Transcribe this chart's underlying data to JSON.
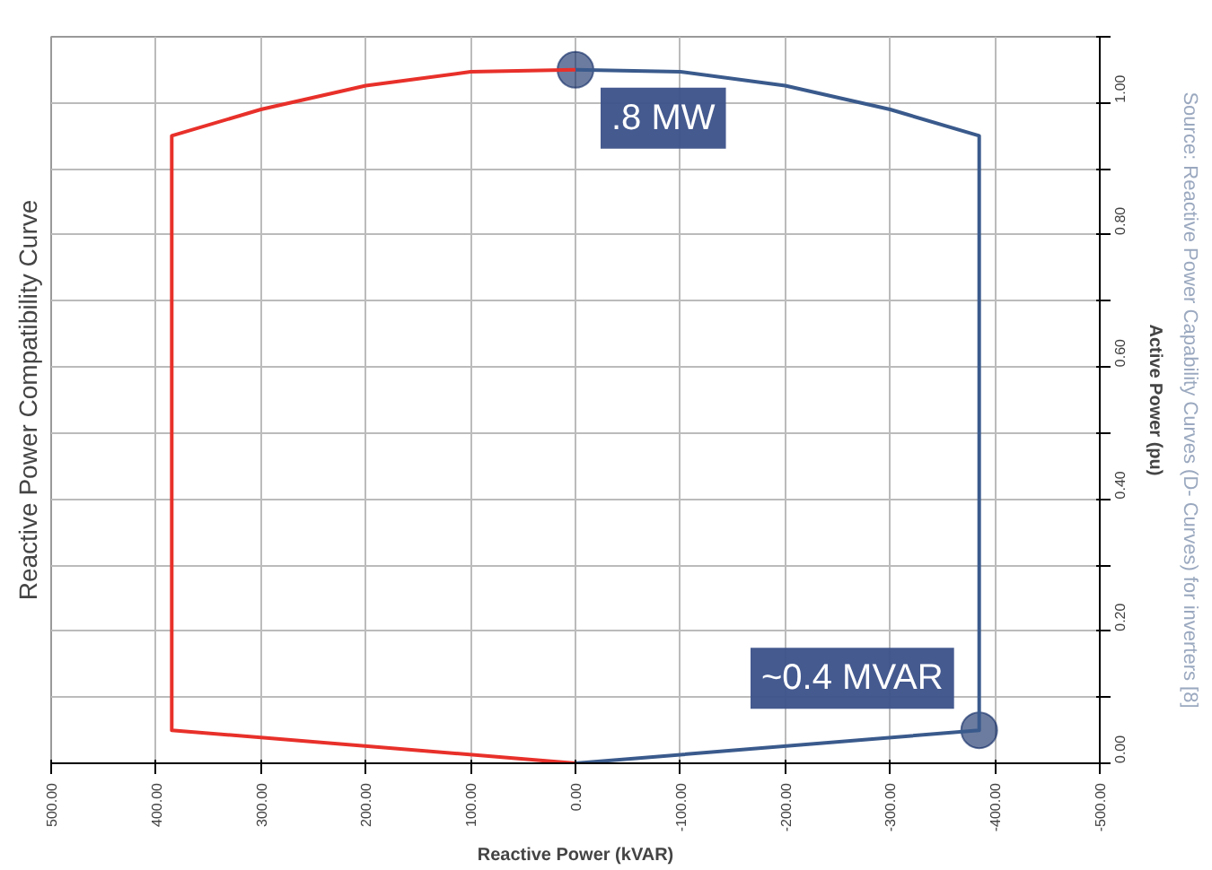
{
  "chart_data": {
    "type": "line",
    "title": "Reactive Power Compatibility Curve",
    "xlabel": "Reactive Power (kVAR)",
    "ylabel": "Active Power (pu)",
    "xlim": [
      500,
      -500
    ],
    "ylim": [
      0,
      1.1
    ],
    "xticks": [
      {
        "value": 500,
        "label": "500.00"
      },
      {
        "value": 400,
        "label": "400.00"
      },
      {
        "value": 300,
        "label": "300.00"
      },
      {
        "value": 200,
        "label": "200.00"
      },
      {
        "value": 100,
        "label": "100.00"
      },
      {
        "value": 0,
        "label": "0.00"
      },
      {
        "value": -100,
        "label": "-100.00"
      },
      {
        "value": -200,
        "label": "-200.00"
      },
      {
        "value": -300,
        "label": "-300.00"
      },
      {
        "value": -400,
        "label": "-400.00"
      },
      {
        "value": -500,
        "label": "-500.00"
      }
    ],
    "yticks": [
      {
        "value": 0,
        "label": "0.00"
      },
      {
        "value": 0.1,
        "label": null
      },
      {
        "value": 0.2,
        "label": "0.20"
      },
      {
        "value": 0.3,
        "label": null
      },
      {
        "value": 0.4,
        "label": "0.40"
      },
      {
        "value": 0.5,
        "label": null
      },
      {
        "value": 0.6,
        "label": "0.60"
      },
      {
        "value": 0.7,
        "label": null
      },
      {
        "value": 0.8,
        "label": "0.80"
      },
      {
        "value": 0.9,
        "label": null
      },
      {
        "value": 1.0,
        "label": "1.00"
      },
      {
        "value": 1.1,
        "label": null
      }
    ],
    "grid": true,
    "series": [
      {
        "color": "#e8302a",
        "x": [
          0,
          100,
          200,
          300,
          385,
          385,
          0
        ],
        "values": [
          1.05,
          1.047,
          1.026,
          0.99,
          0.95,
          0.05,
          0
        ]
      },
      {
        "color": "#3a5a8c",
        "x": [
          0,
          -100,
          -200,
          -300,
          -385,
          -385,
          0
        ],
        "values": [
          1.05,
          1.047,
          1.026,
          0.99,
          0.95,
          0.05,
          0
        ]
      }
    ],
    "annotations": [
      {
        "text": ".8 MW",
        "x": 0,
        "y": 1.05
      },
      {
        "text": "~0.4 MVAR",
        "x": -385,
        "y": 0.05
      },
      "Source: Reactive Power Capability Curves (D- Curves) for inverters [8]"
    ]
  }
}
